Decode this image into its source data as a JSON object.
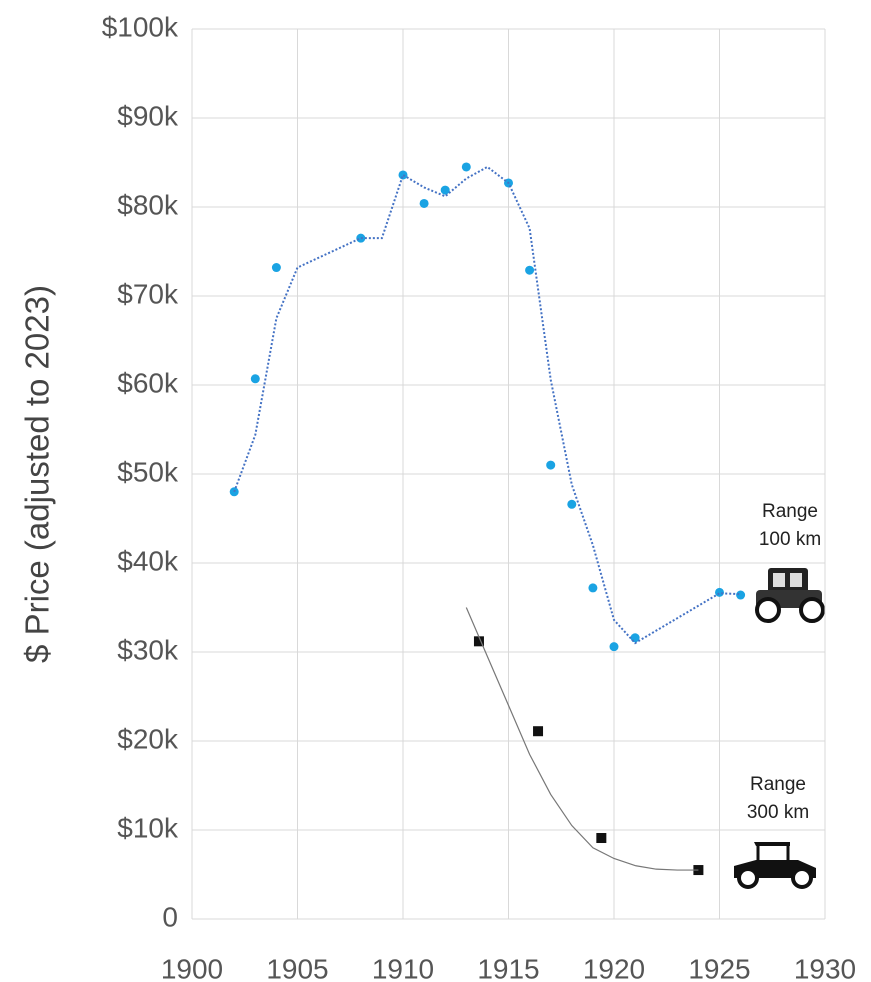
{
  "chart_data": {
    "type": "scatter",
    "y_label": "$ Price (adjusted to 2023)",
    "xlim": [
      1900,
      1930
    ],
    "xticks": [
      1900,
      1905,
      1910,
      1915,
      1920,
      1925,
      1930
    ],
    "ylim": [
      0,
      100
    ],
    "yticks": [
      0,
      {
        "value": 10,
        "label": "$10k"
      },
      {
        "value": 20,
        "label": "$20k"
      },
      {
        "value": 30,
        "label": "$30k"
      },
      {
        "value": 40,
        "label": "$40k"
      },
      {
        "value": 50,
        "label": "$50k"
      },
      {
        "value": 60,
        "label": "$60k"
      },
      {
        "value": 70,
        "label": "$70k"
      },
      {
        "value": 80,
        "label": "$80k"
      },
      {
        "value": 90,
        "label": "$90k"
      },
      {
        "value": 100,
        "label": "$100k"
      }
    ],
    "grid": true,
    "series": [
      {
        "mode": "markers",
        "marker": "circle",
        "color": "#1aa3e3",
        "x": [
          1902,
          1903,
          1904,
          1908,
          1910,
          1911,
          1912,
          1913,
          1915,
          1916,
          1917,
          1918,
          1919,
          1920,
          1921,
          1925,
          1926
        ],
        "values": [
          48,
          60.7,
          73.2,
          76.5,
          83.6,
          80.4,
          81.9,
          84.5,
          82.7,
          72.9,
          51,
          46.6,
          37.2,
          30.6,
          31.6,
          36.7,
          36.4
        ]
      },
      {
        "mode": "line",
        "dash": true,
        "color": "#4472c4",
        "x": [
          1902,
          1903,
          1904,
          1905,
          1908,
          1909,
          1910,
          1911,
          1912,
          1913,
          1914,
          1915,
          1916,
          1917,
          1918,
          1919,
          1920,
          1921,
          1925,
          1926
        ],
        "values": [
          48,
          54.4,
          67.5,
          73.2,
          76.5,
          76.5,
          83.6,
          82.2,
          81.2,
          83.2,
          84.5,
          82.7,
          77.6,
          60.6,
          48.8,
          42,
          33.6,
          31,
          36.6,
          36.5
        ]
      },
      {
        "mode": "markers",
        "marker": "square",
        "color": "#111111",
        "x": [
          1913.6,
          1916.4,
          1919.4,
          1924
        ],
        "values": [
          31.2,
          21.1,
          9.1,
          5.5
        ]
      },
      {
        "mode": "line",
        "dash": false,
        "color": "#777777",
        "x": [
          1913,
          1914,
          1915,
          1916,
          1917,
          1918,
          1919,
          1920,
          1921,
          1922,
          1923,
          1924
        ],
        "values": [
          35,
          29.5,
          24,
          18.5,
          14,
          10.5,
          8,
          6.8,
          6,
          5.6,
          5.5,
          5.5
        ]
      }
    ],
    "annotations": [
      {
        "lines": [
          "Range",
          "100 km"
        ]
      },
      {
        "lines": [
          "Range",
          "300 km"
        ]
      }
    ]
  }
}
